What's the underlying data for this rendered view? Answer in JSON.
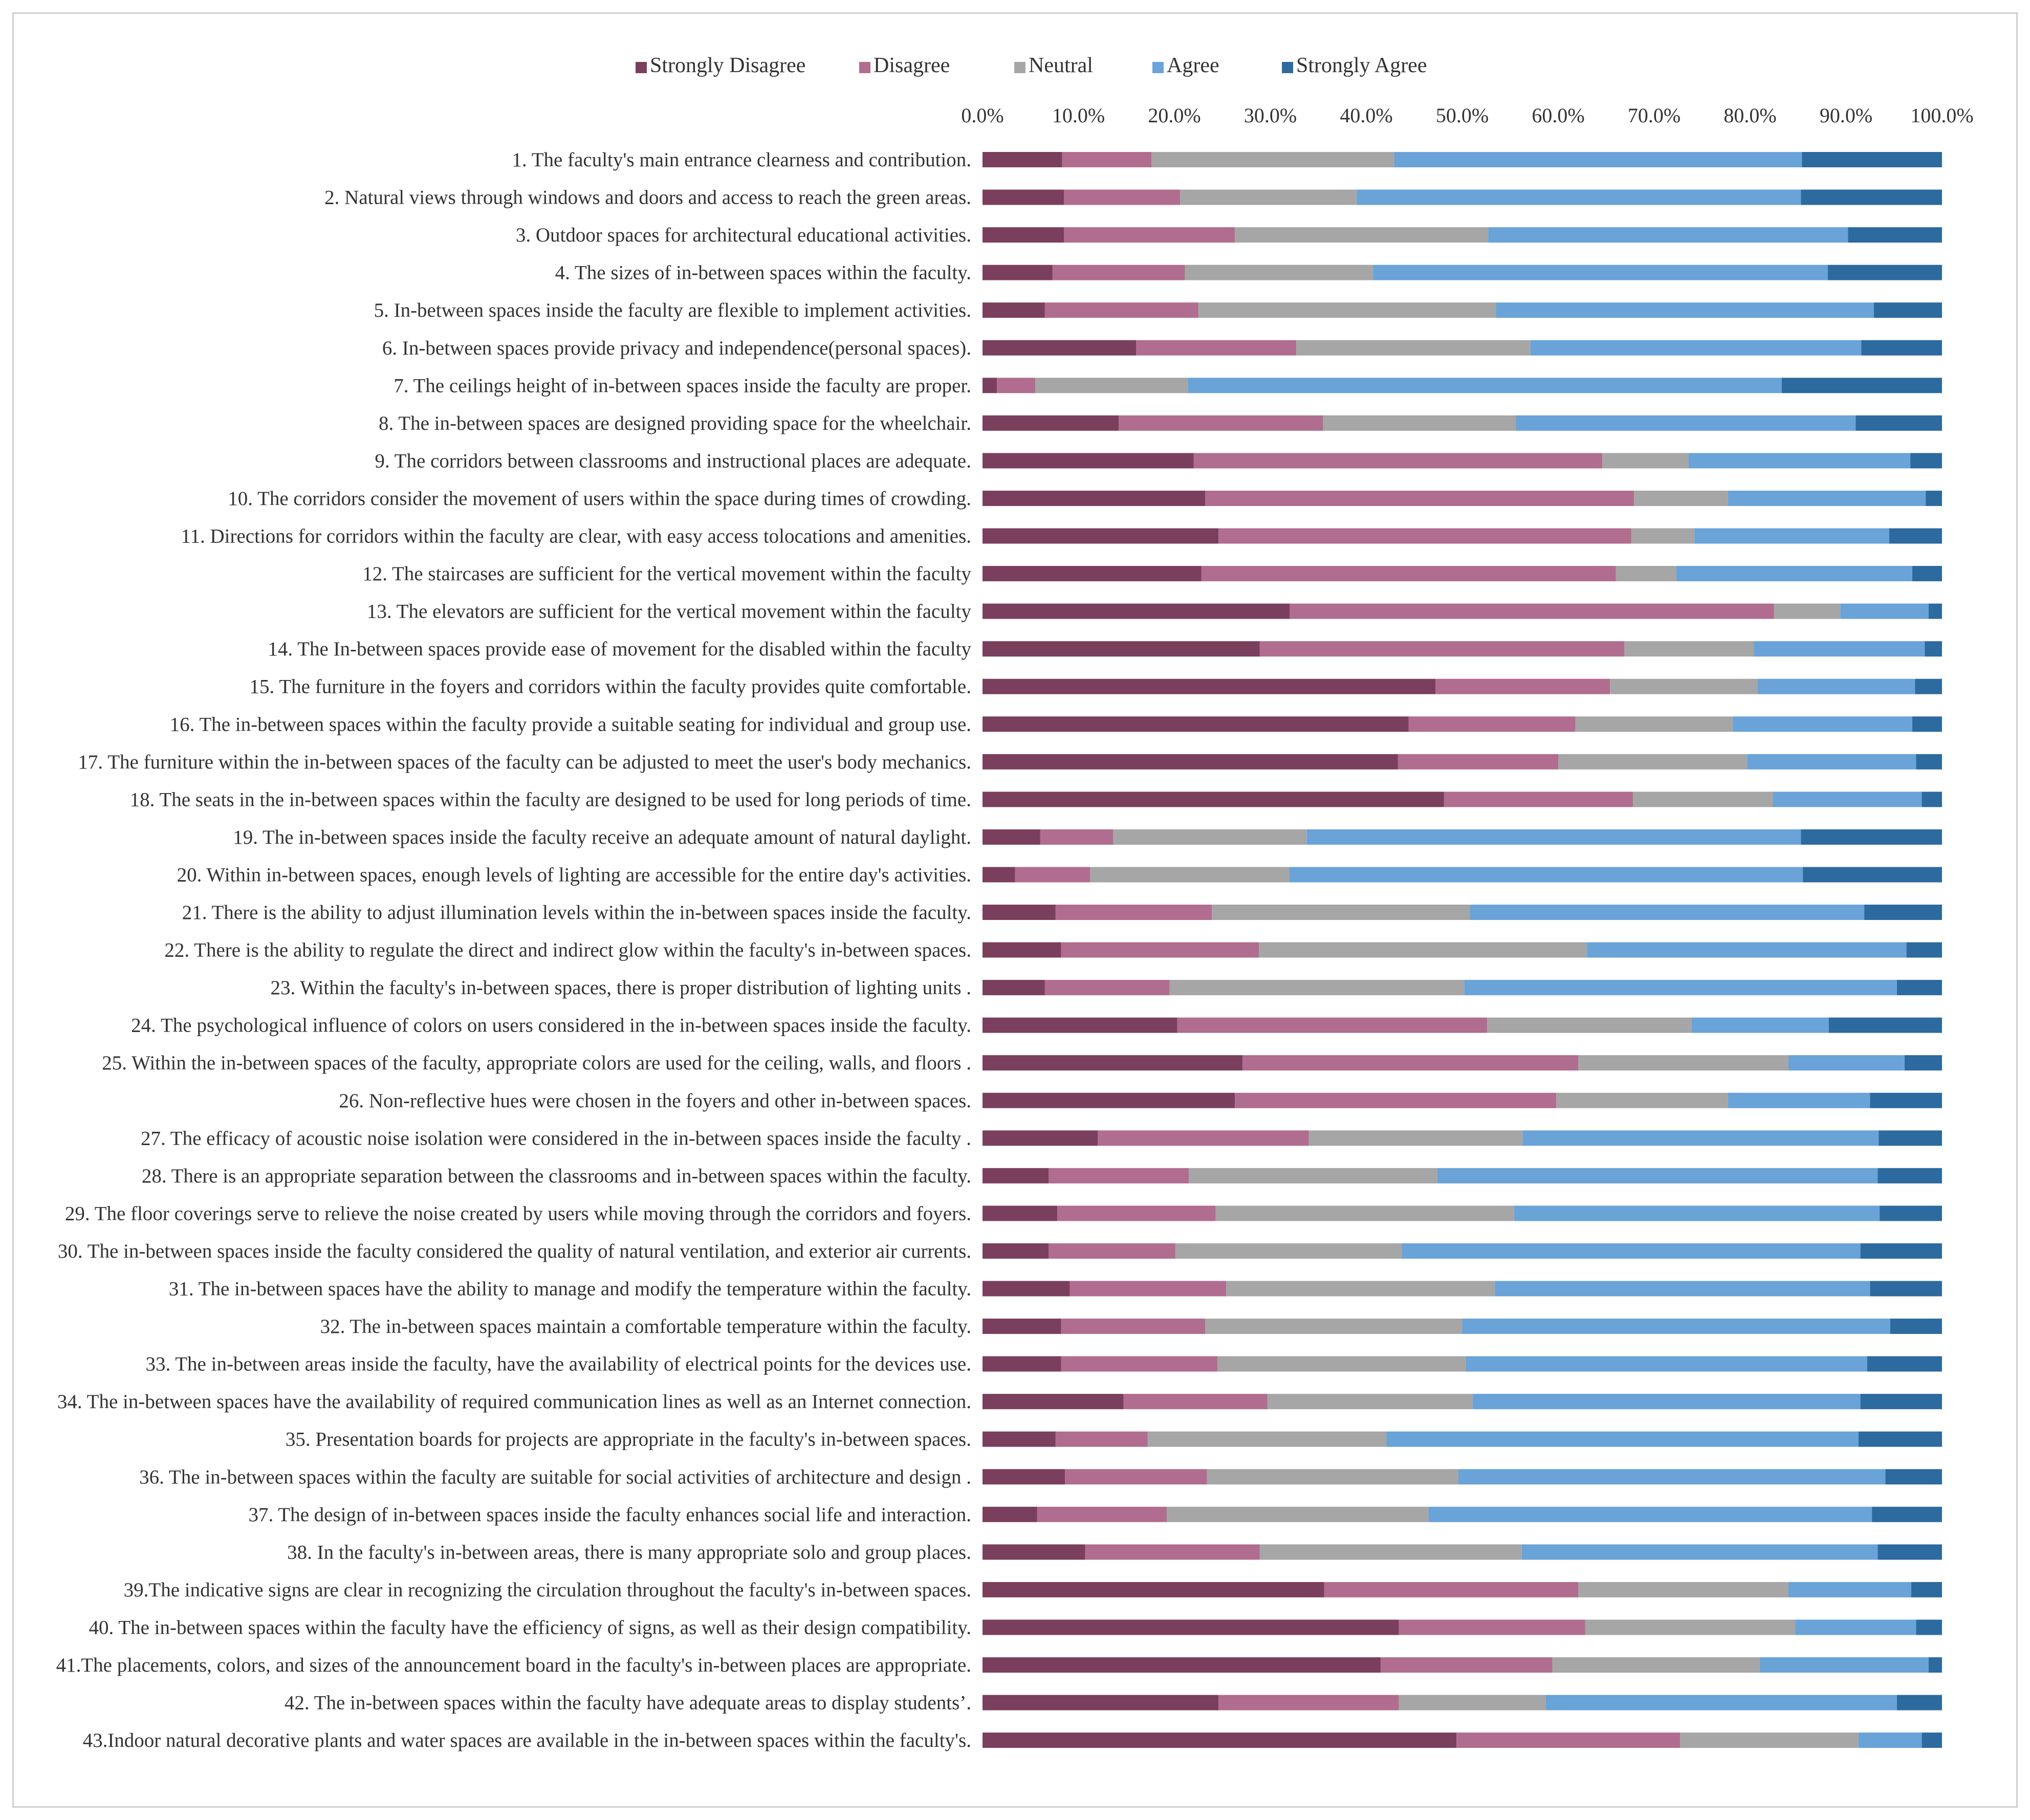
{
  "chart_data": {
    "type": "bar",
    "orientation": "horizontal",
    "stacked": true,
    "percent": true,
    "title": "",
    "xlabel": "",
    "ylabel": "",
    "xlim": [
      0,
      100
    ],
    "xticks": [
      "0.0%",
      "10.0%",
      "20.0%",
      "30.0%",
      "40.0%",
      "50.0%",
      "60.0%",
      "70.0%",
      "80.0%",
      "90.0%",
      "100.0%"
    ],
    "grid": false,
    "legend_position": "top",
    "categories": [
      "1. The faculty's main entrance clearness and contribution.",
      "2. Natural views through windows and doors and access to reach the green areas.",
      "3. Outdoor spaces for architectural educational activities.",
      "4. The sizes of in-between spaces within the faculty.",
      "5. In-between spaces inside the faculty are flexible to implement activities.",
      "6. In-between spaces provide privacy and independence(personal spaces).",
      "7. The ceilings height of in-between spaces inside the faculty are proper.",
      "8. The in-between spaces are designed providing space for the wheelchair.",
      "9. The corridors between classrooms and instructional places are adequate.",
      "10. The corridors consider the movement of users within the space during times of crowding.",
      "11. Directions for corridors within the faculty are clear, with easy access tolocations and amenities.",
      "12. The staircases are sufficient for the vertical movement within the faculty",
      "13. The elevators are sufficient for the vertical movement within the faculty",
      "14. The In-between spaces provide ease of movement for the disabled within the faculty",
      "15. The furniture in the foyers and corridors within the faculty provides quite comfortable.",
      "16. The in-between spaces within the faculty provide a suitable seating for individual and group use.",
      "17. The furniture within the in-between spaces of the faculty  can be adjusted to meet the user's body mechanics.",
      "18. The seats in the in-between spaces within the faculty are designed to be used for long periods of time.",
      "19. The in-between spaces inside the faculty receive an adequate amount of natural daylight.",
      "20. Within in-between spaces, enough levels of lighting are accessible for the entire day's activities.",
      "21. There is the ability to adjust illumination levels within the in-between spaces inside the faculty.",
      "22. There is the ability to regulate the direct and indirect glow within the faculty's in-between spaces.",
      "23. Within the faculty's in-between spaces, there is proper distribution of lighting units .",
      "24. The psychological influence of colors on users considered in the in-between spaces inside the faculty.",
      "25. Within the in-between spaces of the faculty, appropriate colors are used for the ceiling, walls, and floors .",
      "26. Non-reflective hues were chosen in the foyers and other in-between spaces.",
      "27. The efficacy of acoustic noise isolation were considered in  the in-between spaces inside the faculty .",
      "28. There is an appropriate separation between the classrooms and in-between spaces within the faculty.",
      "29. The floor coverings serve to relieve the noise created by users while moving through the corridors and foyers.",
      "30. The in-between spaces inside the faculty considered the quality of natural ventilation, and exterior air currents.",
      "31. The in-between spaces have the ability to manage and modify the temperature within the faculty.",
      "32. The in-between spaces maintain a comfortable temperature within the faculty.",
      "33. The in-between areas inside the faculty, have the availability of electrical points for the devices use.",
      "34. The in-between spaces have the availability of required communication lines as well as an Internet connection.",
      "35. Presentation boards for projects are appropriate in the faculty's in-between spaces.",
      "36. The in-between spaces within the faculty are suitable  for social activities of architecture and design .",
      "37. The design of in-between spaces inside the faculty enhances social life and interaction.",
      "38. In the faculty's in-between areas, there is many appropriate solo and group places.",
      "39.The  indicative signs are clear in recognizing the circulation throughout the faculty's in-between spaces.",
      "40. The in-between spaces within the faculty have the efficiency of signs, as well as their design compatibility.",
      "41.The placements, colors, and sizes of the announcement board in the faculty's in-between places are appropriate.",
      "42. The in-between  spaces within the faculty have adequate areas to display students’.",
      "43.Indoor natural decorative plants and water spaces are available in the  in-between spaces within the faculty's."
    ],
    "series": [
      {
        "name": "Strongly Disagree",
        "color": "#7b3f5e",
        "values": [
          8.3,
          8.5,
          8.5,
          7.3,
          6.5,
          16.0,
          1.5,
          14.2,
          22.0,
          23.2,
          24.6,
          22.8,
          32.0,
          28.9,
          47.2,
          44.4,
          43.3,
          48.1,
          6.0,
          3.4,
          7.6,
          8.2,
          6.5,
          20.3,
          27.1,
          26.3,
          12.0,
          6.9,
          7.8,
          6.9,
          9.1,
          8.2,
          8.2,
          14.7,
          7.6,
          8.6,
          5.7,
          10.7,
          35.6,
          43.4,
          41.5,
          24.6,
          49.4
        ]
      },
      {
        "name": "Disagree",
        "color": "#b06d8f",
        "values": [
          9.3,
          12.1,
          17.8,
          13.8,
          16.0,
          16.7,
          4.0,
          21.3,
          42.6,
          44.7,
          43.0,
          43.2,
          50.5,
          38.0,
          18.2,
          17.4,
          16.7,
          19.7,
          7.6,
          7.8,
          16.3,
          20.6,
          13.0,
          32.3,
          35.0,
          33.5,
          22.0,
          14.6,
          16.5,
          13.2,
          16.3,
          15.0,
          16.3,
          15.0,
          9.6,
          14.8,
          13.5,
          18.2,
          26.5,
          19.4,
          17.9,
          18.8,
          23.3
        ]
      },
      {
        "name": "Neutral",
        "color": "#a6a6a6",
        "values": [
          25.3,
          18.4,
          26.4,
          19.6,
          31.0,
          24.4,
          15.9,
          20.1,
          9.0,
          9.8,
          6.6,
          6.3,
          6.9,
          13.5,
          15.4,
          16.4,
          19.7,
          14.6,
          20.2,
          20.8,
          26.9,
          34.2,
          30.7,
          21.3,
          21.9,
          17.9,
          22.3,
          25.9,
          31.1,
          23.6,
          28.0,
          26.8,
          25.9,
          21.4,
          24.9,
          26.2,
          27.3,
          27.3,
          21.9,
          21.9,
          21.6,
          15.3,
          18.6
        ]
      },
      {
        "name": "Agree",
        "color": "#69a3d8",
        "values": [
          42.5,
          46.3,
          37.5,
          47.4,
          39.4,
          34.5,
          61.9,
          35.4,
          23.1,
          20.6,
          20.3,
          24.6,
          9.2,
          17.8,
          16.4,
          18.7,
          17.6,
          15.5,
          51.5,
          53.5,
          41.1,
          33.3,
          45.1,
          14.3,
          12.1,
          14.8,
          37.1,
          45.9,
          38.1,
          47.8,
          39.1,
          44.6,
          41.8,
          40.4,
          49.2,
          44.5,
          46.2,
          37.1,
          12.8,
          12.6,
          17.6,
          36.6,
          6.6
        ]
      },
      {
        "name": "Strongly Agree",
        "color": "#2d6a9f",
        "values": [
          14.6,
          14.7,
          9.8,
          11.9,
          7.1,
          8.4,
          16.7,
          9.0,
          3.3,
          1.7,
          5.5,
          3.1,
          1.4,
          1.8,
          2.8,
          3.1,
          2.7,
          2.1,
          14.7,
          14.5,
          8.1,
          3.7,
          4.7,
          11.8,
          3.9,
          7.5,
          6.6,
          6.7,
          6.5,
          8.5,
          7.5,
          5.4,
          7.8,
          8.5,
          8.7,
          5.9,
          7.3,
          6.7,
          3.2,
          2.7,
          1.4,
          4.7,
          2.1
        ]
      }
    ]
  }
}
